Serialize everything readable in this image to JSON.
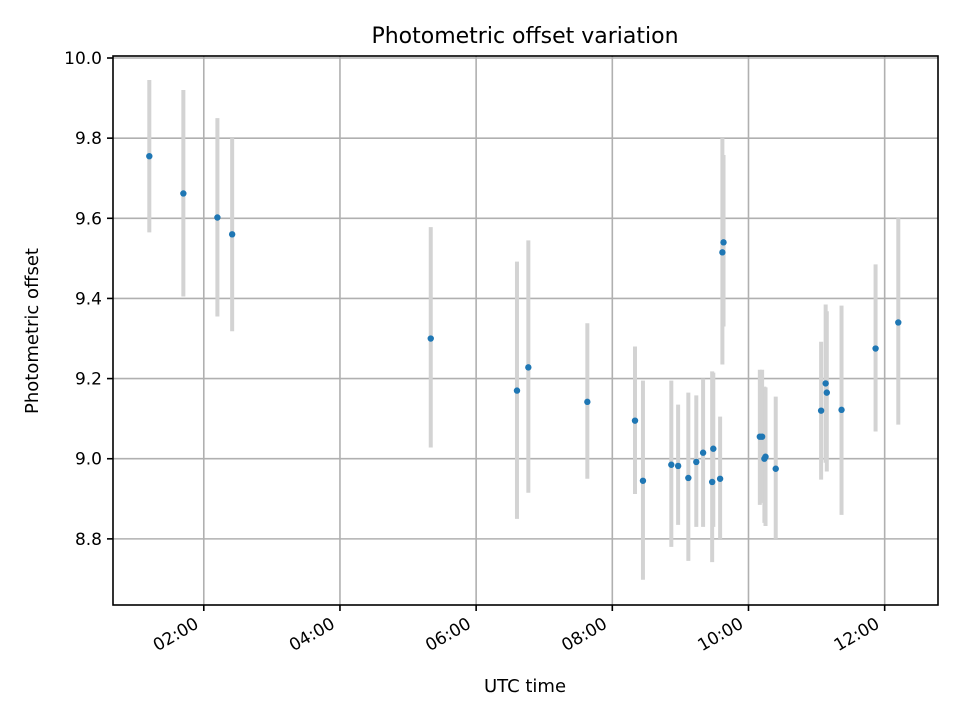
{
  "chart_data": {
    "type": "scatter",
    "title": "Photometric offset variation",
    "xlabel": "UTC time",
    "ylabel": "Photometric offset",
    "x_ticks": [
      "02:00",
      "04:00",
      "06:00",
      "08:00",
      "10:00",
      "12:00"
    ],
    "y_ticks": [
      "8.8",
      "9.0",
      "9.2",
      "9.4",
      "9.6",
      "9.8",
      "10.0"
    ],
    "xlim": [
      "00:40",
      "12:47"
    ],
    "ylim": [
      8.635,
      10.005
    ],
    "grid": true,
    "marker_color": "#1f77b4",
    "errorbar_color": "#d3d3d3",
    "points": [
      {
        "t": "01:12",
        "y": 9.755,
        "lo": 9.565,
        "hi": 9.945
      },
      {
        "t": "01:42",
        "y": 9.662,
        "lo": 9.405,
        "hi": 9.92
      },
      {
        "t": "02:12",
        "y": 9.602,
        "lo": 9.355,
        "hi": 9.85
      },
      {
        "t": "02:25",
        "y": 9.56,
        "lo": 9.318,
        "hi": 9.8
      },
      {
        "t": "05:20",
        "y": 9.3,
        "lo": 9.028,
        "hi": 9.578
      },
      {
        "t": "06:36",
        "y": 9.17,
        "lo": 8.85,
        "hi": 9.492
      },
      {
        "t": "06:46",
        "y": 9.228,
        "lo": 8.915,
        "hi": 9.545
      },
      {
        "t": "07:38",
        "y": 9.142,
        "lo": 8.95,
        "hi": 9.338
      },
      {
        "t": "08:20",
        "y": 9.095,
        "lo": 8.912,
        "hi": 9.28
      },
      {
        "t": "08:27",
        "y": 8.945,
        "lo": 8.698,
        "hi": 9.195
      },
      {
        "t": "08:52",
        "y": 8.985,
        "lo": 8.78,
        "hi": 9.195
      },
      {
        "t": "08:58",
        "y": 8.982,
        "lo": 8.835,
        "hi": 9.135
      },
      {
        "t": "09:07",
        "y": 8.952,
        "lo": 8.745,
        "hi": 9.165
      },
      {
        "t": "09:14",
        "y": 8.992,
        "lo": 8.83,
        "hi": 9.158
      },
      {
        "t": "09:20",
        "y": 9.015,
        "lo": 8.83,
        "hi": 9.2
      },
      {
        "t": "09:28",
        "y": 8.942,
        "lo": 8.742,
        "hi": 9.218
      },
      {
        "t": "09:29",
        "y": 9.025,
        "lo": 8.83,
        "hi": 9.215
      },
      {
        "t": "09:35",
        "y": 8.95,
        "lo": 8.8,
        "hi": 9.105
      },
      {
        "t": "09:37",
        "y": 9.515,
        "lo": 9.235,
        "hi": 9.8
      },
      {
        "t": "09:38",
        "y": 9.54,
        "lo": 9.33,
        "hi": 9.758
      },
      {
        "t": "10:10",
        "y": 9.055,
        "lo": 8.885,
        "hi": 9.222
      },
      {
        "t": "10:12",
        "y": 9.055,
        "lo": 8.89,
        "hi": 9.222
      },
      {
        "t": "10:14",
        "y": 9.0,
        "lo": 8.84,
        "hi": 9.18
      },
      {
        "t": "10:15",
        "y": 9.005,
        "lo": 8.832,
        "hi": 9.178
      },
      {
        "t": "10:24",
        "y": 8.975,
        "lo": 8.8,
        "hi": 9.155
      },
      {
        "t": "11:04",
        "y": 9.12,
        "lo": 8.948,
        "hi": 9.292
      },
      {
        "t": "11:08",
        "y": 9.188,
        "lo": 8.99,
        "hi": 9.385
      },
      {
        "t": "11:09",
        "y": 9.165,
        "lo": 8.968,
        "hi": 9.368
      },
      {
        "t": "11:22",
        "y": 9.122,
        "lo": 8.86,
        "hi": 9.382
      },
      {
        "t": "11:52",
        "y": 9.275,
        "lo": 9.068,
        "hi": 9.485
      },
      {
        "t": "12:12",
        "y": 9.34,
        "lo": 9.085,
        "hi": 9.6
      }
    ]
  }
}
